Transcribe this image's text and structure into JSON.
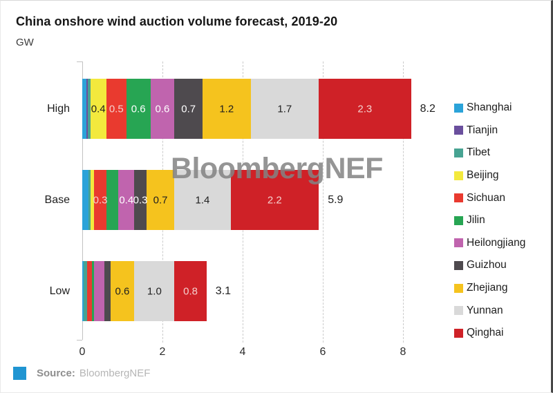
{
  "title": "China onshore wind auction volume forecast, 2019-20",
  "unit_label": "GW",
  "watermark": "BloombergNEF",
  "source": {
    "label": "Source:",
    "value": "BloombergNEF",
    "swatch_color": "#2095d2"
  },
  "colors": {
    "Shanghai": "#2ba3d9",
    "Tianjin": "#6a4f9d",
    "Tibet": "#47a392",
    "Beijing": "#f3e93d",
    "Sichuan": "#e93a2f",
    "Jilin": "#27a553",
    "Heilongjiang": "#c064ae",
    "Guizhou": "#4e4a4e",
    "Zhejiang": "#f5c31e",
    "Yunnan": "#d9d9d9",
    "Qinghai": "#cf2127"
  },
  "legend": [
    "Shanghai",
    "Tianjin",
    "Tibet",
    "Beijing",
    "Sichuan",
    "Jilin",
    "Heilongjiang",
    "Guizhou",
    "Zhejiang",
    "Yunnan",
    "Qinghai"
  ],
  "chart_data": {
    "type": "bar",
    "orientation": "horizontal",
    "stacked": true,
    "title": "China onshore wind auction volume forecast, 2019-20",
    "ylabel": "GW",
    "xlim": [
      0,
      9.03
    ],
    "x_ticks": [
      0,
      2,
      4,
      6,
      8
    ],
    "grid": "dashed-vertical",
    "legend_position": "right",
    "categories": [
      "High",
      "Base",
      "Low"
    ],
    "totals": [
      "8.2",
      "5.9",
      "3.1"
    ],
    "rows": [
      {
        "category": "High",
        "total_label": "8.2",
        "segments": [
          {
            "province": "Shanghai",
            "value": 0.1,
            "label": "",
            "label_color": ""
          },
          {
            "province": "Tianjin",
            "value": 0.03,
            "label": "",
            "label_color": ""
          },
          {
            "province": "Tibet",
            "value": 0.07,
            "label": "",
            "label_color": ""
          },
          {
            "province": "Beijing",
            "value": 0.4,
            "label": "0.4",
            "label_color": "#1f1f1f"
          },
          {
            "province": "Sichuan",
            "value": 0.5,
            "label": "0.5",
            "label_color": "#f5d0cd"
          },
          {
            "province": "Jilin",
            "value": 0.6,
            "label": "0.6",
            "label_color": "#ffffff"
          },
          {
            "province": "Heilongjiang",
            "value": 0.6,
            "label": "0.6",
            "label_color": "#ffffff"
          },
          {
            "province": "Guizhou",
            "value": 0.7,
            "label": "0.7",
            "label_color": "#ffffff"
          },
          {
            "province": "Zhejiang",
            "value": 1.2,
            "label": "1.2",
            "label_color": "#1f1f1f"
          },
          {
            "province": "Yunnan",
            "value": 1.7,
            "label": "1.7",
            "label_color": "#1f1f1f"
          },
          {
            "province": "Qinghai",
            "value": 2.3,
            "label": "2.3",
            "label_color": "#f5d0cd"
          }
        ]
      },
      {
        "category": "Base",
        "total_label": "5.9",
        "segments": [
          {
            "province": "Shanghai",
            "value": 0.15,
            "label": "",
            "label_color": ""
          },
          {
            "province": "Tibet",
            "value": 0.05,
            "label": "",
            "label_color": ""
          },
          {
            "province": "Beijing",
            "value": 0.1,
            "label": "",
            "label_color": ""
          },
          {
            "province": "Sichuan",
            "value": 0.3,
            "label": "0.3",
            "label_color": "#f5d0cd"
          },
          {
            "province": "Jilin",
            "value": 0.3,
            "label": "",
            "label_color": ""
          },
          {
            "province": "Heilongjiang",
            "value": 0.4,
            "label": "0.4",
            "label_color": "#ffffff"
          },
          {
            "province": "Guizhou",
            "value": 0.3,
            "label": "0.3",
            "label_color": "#ffffff"
          },
          {
            "province": "Zhejiang",
            "value": 0.7,
            "label": "0.7",
            "label_color": "#1f1f1f"
          },
          {
            "province": "Yunnan",
            "value": 1.4,
            "label": "1.4",
            "label_color": "#1f1f1f"
          },
          {
            "province": "Qinghai",
            "value": 2.2,
            "label": "2.2",
            "label_color": "#f5d0cd"
          }
        ]
      },
      {
        "category": "Low",
        "total_label": "3.1",
        "segments": [
          {
            "province": "Shanghai",
            "value": 0.03,
            "label": "",
            "label_color": ""
          },
          {
            "province": "Tibet",
            "value": 0.09,
            "label": "",
            "label_color": ""
          },
          {
            "province": "Sichuan",
            "value": 0.12,
            "label": "",
            "label_color": ""
          },
          {
            "province": "Jilin",
            "value": 0.06,
            "label": "",
            "label_color": ""
          },
          {
            "province": "Heilongjiang",
            "value": 0.25,
            "label": "",
            "label_color": ""
          },
          {
            "province": "Guizhou",
            "value": 0.15,
            "label": "",
            "label_color": ""
          },
          {
            "province": "Zhejiang",
            "value": 0.6,
            "label": "0.6",
            "label_color": "#1f1f1f"
          },
          {
            "province": "Yunnan",
            "value": 1.0,
            "label": "1.0",
            "label_color": "#1f1f1f"
          },
          {
            "province": "Qinghai",
            "value": 0.8,
            "label": "0.8",
            "label_color": "#f5d0cd"
          }
        ]
      }
    ]
  }
}
